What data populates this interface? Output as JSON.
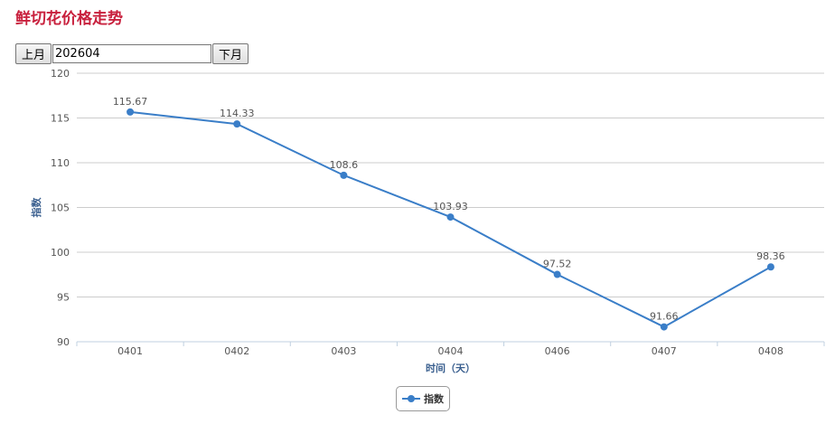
{
  "header": {
    "title": "鲜切花价格走势"
  },
  "controls": {
    "prev_label": "上月",
    "month_value": "202604",
    "next_label": "下月"
  },
  "chart_data": {
    "type": "line",
    "categories": [
      "0401",
      "0402",
      "0403",
      "0404",
      "0406",
      "0407",
      "0408"
    ],
    "series": [
      {
        "name": "指数",
        "values": [
          115.67,
          114.33,
          108.6,
          103.93,
          97.52,
          91.66,
          98.36
        ]
      }
    ],
    "xlabel": "时间（天）",
    "ylabel": "指数",
    "ylim": [
      90,
      120
    ],
    "yticks": [
      90,
      95,
      100,
      105,
      110,
      115,
      120
    ],
    "grid": true,
    "legend": "bottom-center",
    "colors": {
      "series": "#3a7ec8",
      "title": "#c8203d",
      "axis_title": "#3a5f8f"
    }
  }
}
